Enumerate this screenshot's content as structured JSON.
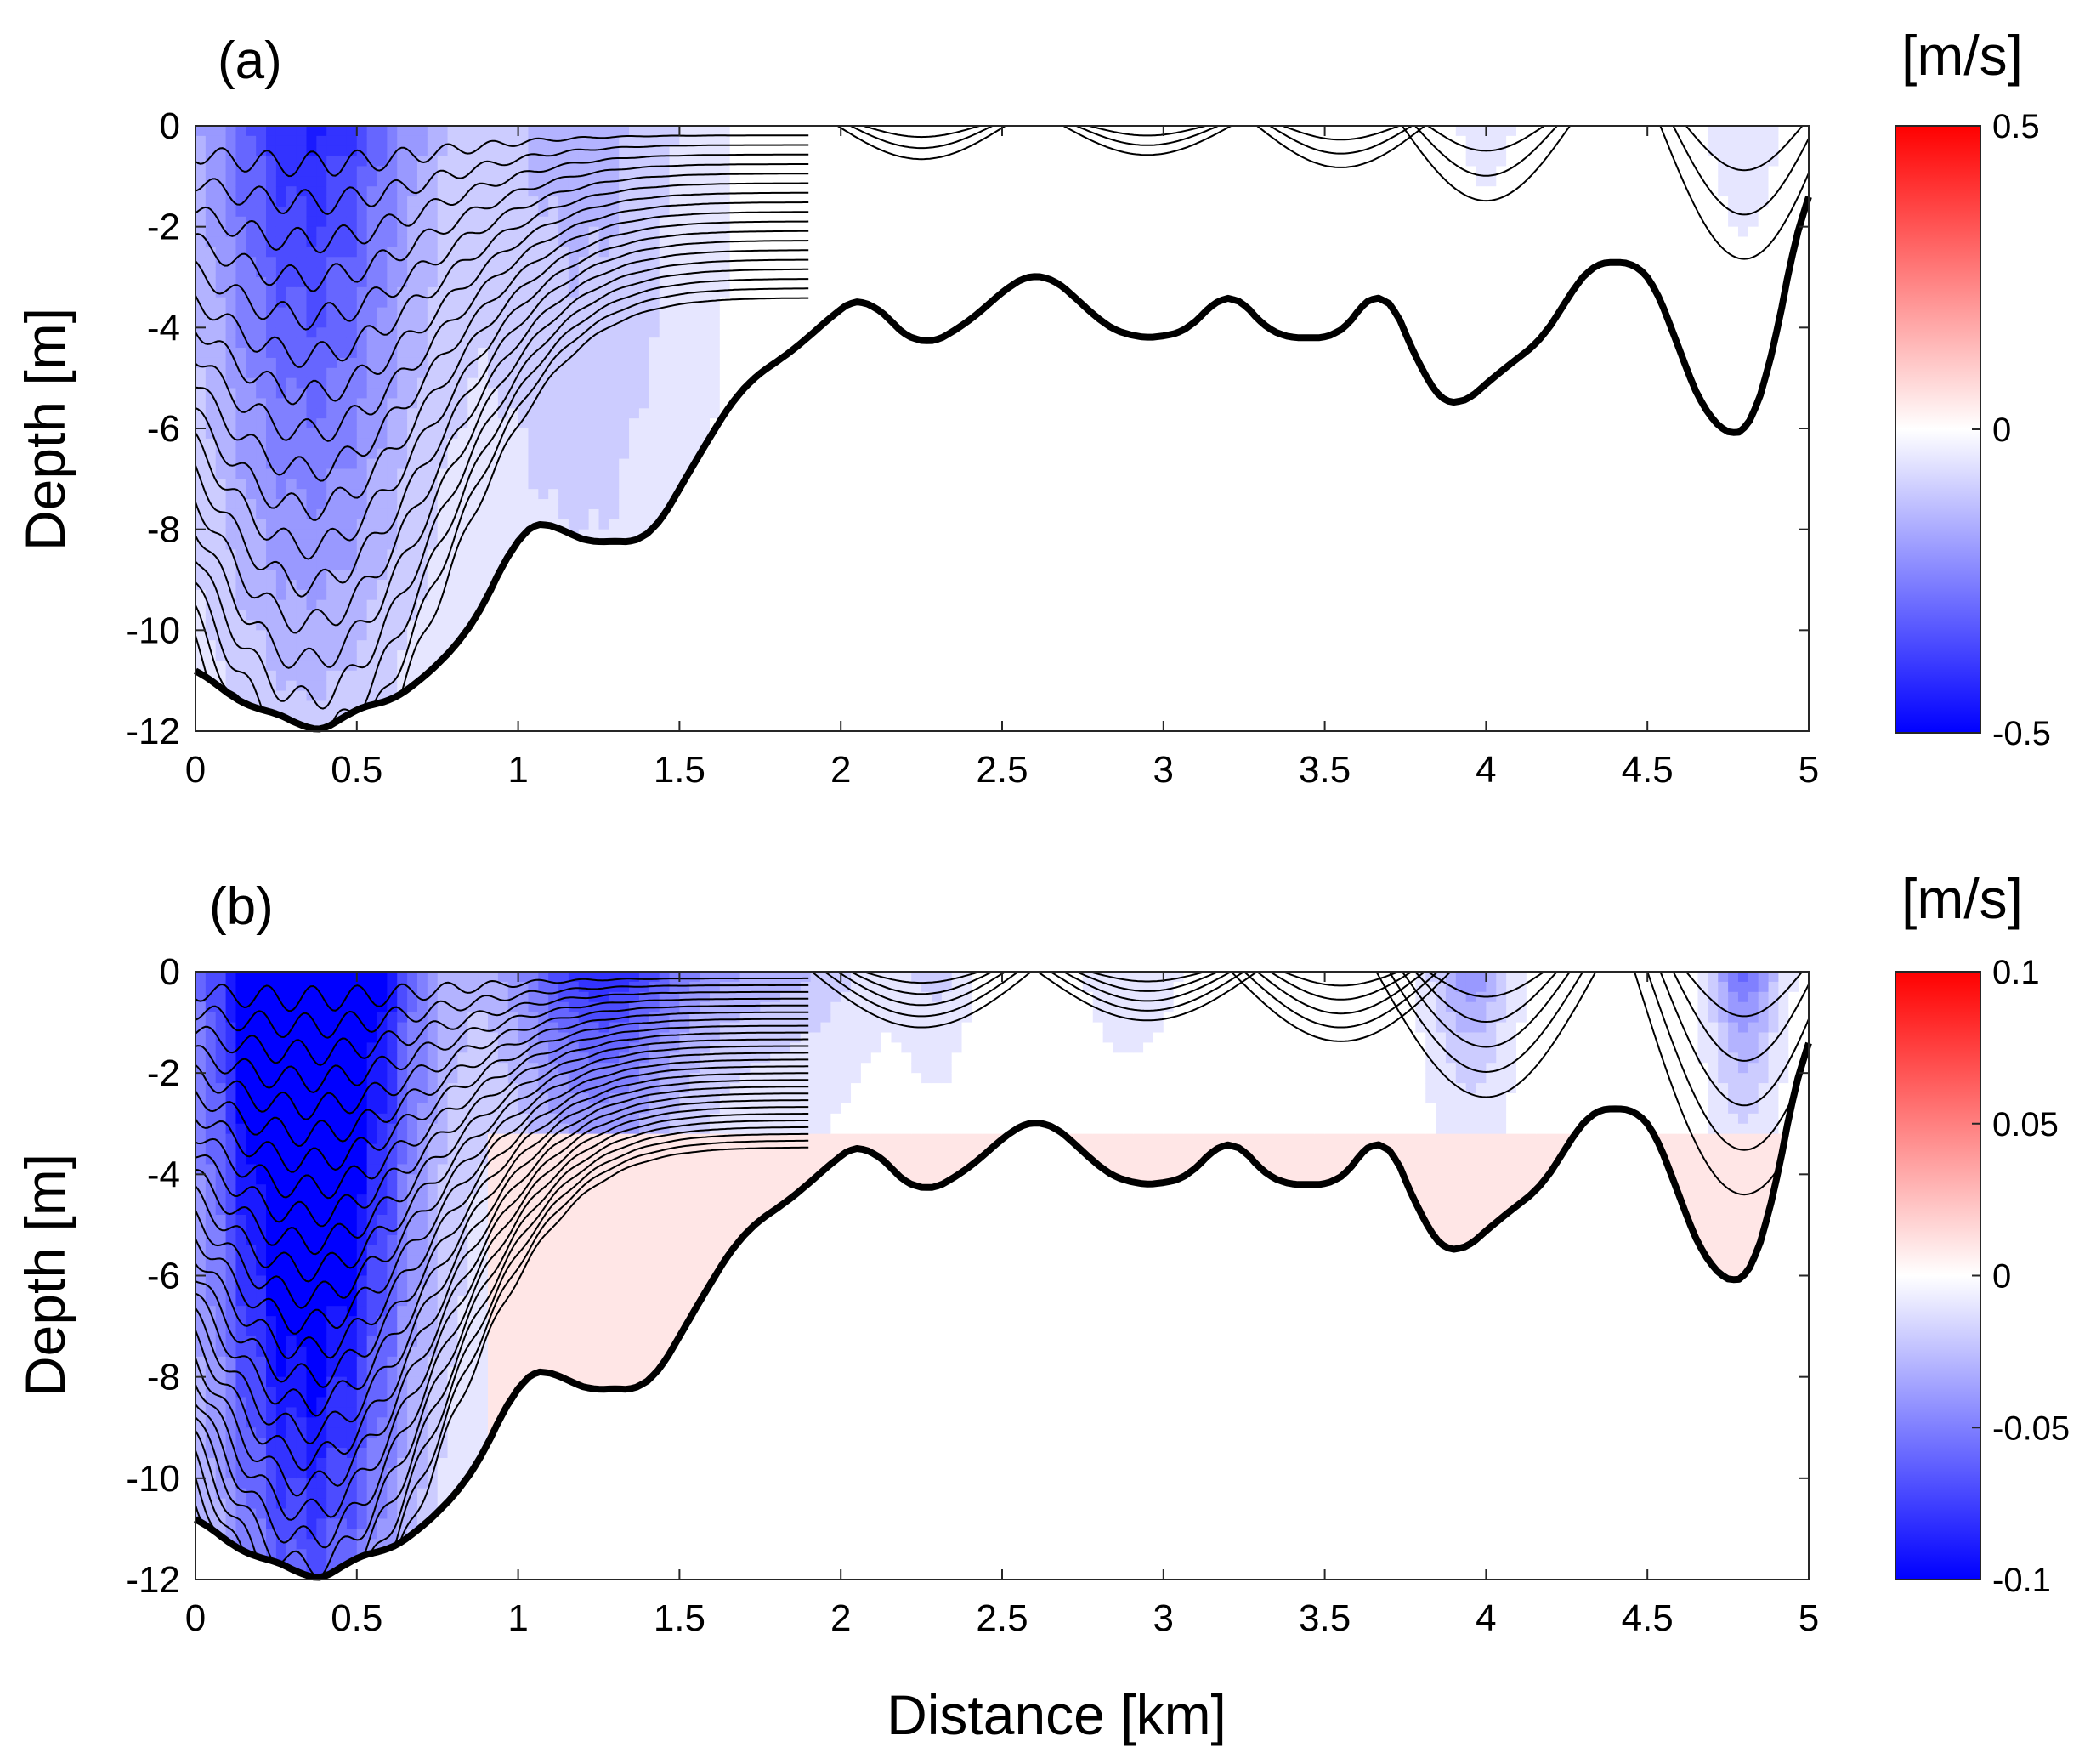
{
  "colors": {
    "neg_max": "#0000ff",
    "zero": "#ffffff",
    "pos_max": "#ff0000",
    "bathymetry_line": "#000000",
    "contour_line": "#000000"
  },
  "chart_data": [
    {
      "type": "contour",
      "panel_label": "(a)",
      "xlabel": "Distance [km]",
      "ylabel": "Depth [m]",
      "xlim": [
        0,
        5
      ],
      "ylim": [
        -12,
        0
      ],
      "x_ticks": [
        0,
        0.5,
        1,
        1.5,
        2,
        2.5,
        3,
        3.5,
        4,
        4.5,
        5
      ],
      "x_tick_labels": [
        "0",
        "0.5",
        "1",
        "1.5",
        "2",
        "2.5",
        "3",
        "3.5",
        "4",
        "4.5",
        "5"
      ],
      "y_ticks": [
        0,
        -2,
        -4,
        -6,
        -8,
        -10,
        -12
      ],
      "y_tick_labels": [
        "0",
        "-2",
        "-4",
        "-6",
        "-8",
        "-10",
        "-12"
      ],
      "colorbar": {
        "unit": "[m/s]",
        "range": [
          -0.5,
          0.5
        ],
        "ticks": [
          0.5,
          0,
          -0.5
        ],
        "tick_labels": [
          "0.5",
          "0",
          "-0.5"
        ]
      },
      "bathymetry": {
        "x": [
          0,
          0.1,
          0.2,
          0.3,
          0.36,
          0.42,
          0.48,
          0.58,
          0.68,
          0.78,
          0.85,
          0.92,
          1.0,
          1.1,
          1.2,
          1.3,
          1.4,
          1.5,
          1.6,
          1.7,
          1.8,
          1.9,
          2.0,
          2.08,
          2.15,
          2.25,
          2.35,
          2.45,
          2.55,
          2.62,
          2.7,
          2.8,
          2.9,
          3.0,
          3.1,
          3.2,
          3.28,
          3.35,
          3.45,
          3.55,
          3.62,
          3.67,
          3.75,
          3.82,
          3.9,
          4.0,
          4.1,
          4.2,
          4.3,
          4.35,
          4.45,
          4.5,
          4.55,
          4.62,
          4.7,
          4.78,
          4.85,
          4.92,
          5.0
        ],
        "depth": [
          -10.7,
          -11.3,
          -11.6,
          -11.7,
          -12.1,
          -12.0,
          -11.5,
          -11.5,
          -11.1,
          -10.5,
          -10.0,
          -9.2,
          -8.0,
          -7.8,
          -8.3,
          -8.2,
          -8.3,
          -7.2,
          -6.1,
          -5.1,
          -4.7,
          -4.2,
          -3.6,
          -3.3,
          -3.9,
          -4.4,
          -4.1,
          -3.6,
          -3.0,
          -2.9,
          -3.2,
          -3.9,
          -4.2,
          -4.2,
          -4.0,
          -3.1,
          -3.8,
          -4.2,
          -4.2,
          -4.2,
          -3.6,
          -2.9,
          -4.1,
          -5.2,
          -5.7,
          -5.1,
          -4.6,
          -4.1,
          -2.8,
          -2.7,
          -2.7,
          -2.8,
          -3.4,
          -5.0,
          -5.9,
          -6.3,
          -5.8,
          -3.5,
          -0.8
        ]
      },
      "contour_step_ms": 0.02
    },
    {
      "type": "contour",
      "panel_label": "(b)",
      "xlabel": "Distance [km]",
      "ylabel": "Depth [m]",
      "xlim": [
        0,
        5
      ],
      "ylim": [
        -12,
        0
      ],
      "x_ticks": [
        0,
        0.5,
        1,
        1.5,
        2,
        2.5,
        3,
        3.5,
        4,
        4.5,
        5
      ],
      "x_tick_labels": [
        "0",
        "0.5",
        "1",
        "1.5",
        "2",
        "2.5",
        "3",
        "3.5",
        "4",
        "4.5",
        "5"
      ],
      "y_ticks": [
        0,
        -2,
        -4,
        -6,
        -8,
        -10,
        -12
      ],
      "y_tick_labels": [
        "0",
        "-2",
        "-4",
        "-6",
        "-8",
        "-10",
        "-12"
      ],
      "colorbar": {
        "unit": "[m/s]",
        "range": [
          -0.1,
          0.1
        ],
        "ticks": [
          0.1,
          0.05,
          0,
          -0.05,
          -0.1
        ],
        "tick_labels": [
          "0.1",
          "0.05",
          "0",
          "-0.05",
          "-0.1"
        ]
      },
      "bathymetry": {
        "x": [
          0,
          0.1,
          0.2,
          0.3,
          0.36,
          0.42,
          0.48,
          0.58,
          0.68,
          0.78,
          0.85,
          0.92,
          1.0,
          1.1,
          1.2,
          1.3,
          1.4,
          1.5,
          1.6,
          1.7,
          1.8,
          1.9,
          2.0,
          2.08,
          2.15,
          2.25,
          2.35,
          2.45,
          2.55,
          2.62,
          2.7,
          2.8,
          2.9,
          3.0,
          3.1,
          3.2,
          3.28,
          3.35,
          3.45,
          3.55,
          3.62,
          3.67,
          3.75,
          3.82,
          3.9,
          4.0,
          4.1,
          4.2,
          4.3,
          4.35,
          4.45,
          4.5,
          4.55,
          4.62,
          4.7,
          4.78,
          4.85,
          4.92,
          5.0
        ],
        "depth": [
          -10.7,
          -11.3,
          -11.6,
          -11.7,
          -12.1,
          -12.0,
          -11.5,
          -11.5,
          -11.1,
          -10.5,
          -10.0,
          -9.2,
          -8.0,
          -7.8,
          -8.3,
          -8.2,
          -8.3,
          -7.2,
          -6.1,
          -5.1,
          -4.7,
          -4.2,
          -3.6,
          -3.3,
          -3.9,
          -4.4,
          -4.1,
          -3.6,
          -3.0,
          -2.9,
          -3.2,
          -3.9,
          -4.2,
          -4.2,
          -4.0,
          -3.1,
          -3.8,
          -4.2,
          -4.2,
          -4.2,
          -3.6,
          -2.9,
          -4.1,
          -5.2,
          -5.7,
          -5.1,
          -4.6,
          -4.1,
          -2.8,
          -2.7,
          -2.7,
          -2.8,
          -3.4,
          -5.0,
          -5.9,
          -6.3,
          -5.8,
          -3.5,
          -0.8
        ]
      },
      "contour_step_ms": 0.005
    }
  ]
}
